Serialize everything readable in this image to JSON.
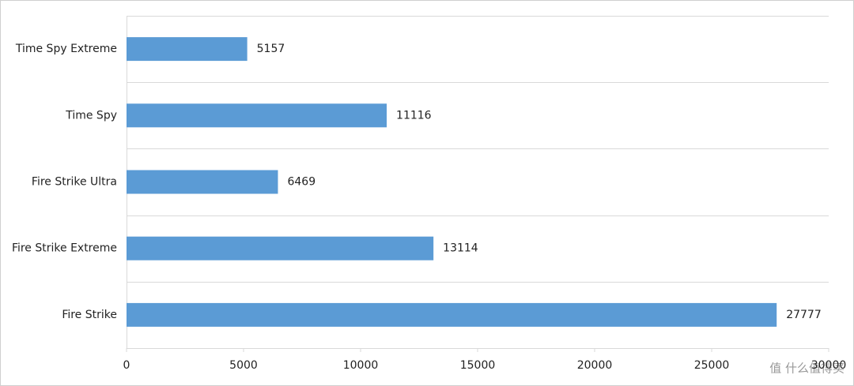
{
  "chart_data": {
    "type": "bar",
    "orientation": "horizontal",
    "categories": [
      "Time Spy Extreme",
      "Time Spy",
      "Fire Strike Ultra",
      "Fire Strike Extreme",
      "Fire Strike"
    ],
    "values": [
      5157,
      11116,
      6469,
      13114,
      27777
    ],
    "color": "#5b9bd5",
    "xlim": [
      0,
      30000
    ],
    "xticks": [
      0,
      5000,
      10000,
      15000,
      20000,
      25000,
      30000
    ],
    "watermark": "值 什么值得买"
  }
}
